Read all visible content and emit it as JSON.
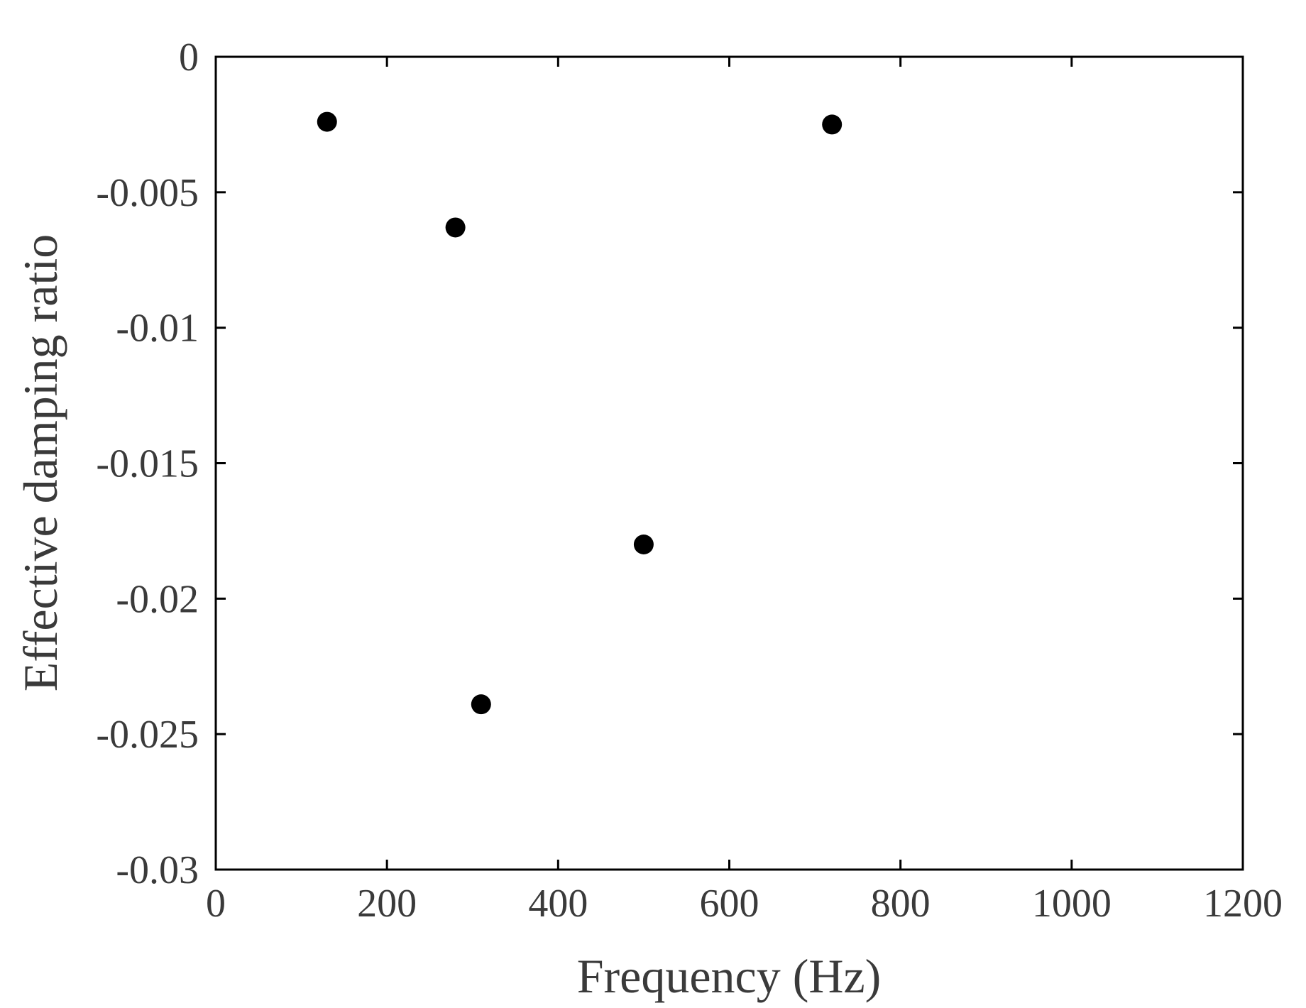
{
  "chart_data": {
    "type": "scatter",
    "title": "",
    "xlabel": "Frequency (Hz)",
    "ylabel": "Effective damping ratio",
    "xlim": [
      0,
      1200
    ],
    "ylim": [
      -0.03,
      0
    ],
    "xticks": [
      0,
      200,
      400,
      600,
      800,
      1000,
      1200
    ],
    "xtick_labels": [
      "0",
      "200",
      "400",
      "600",
      "800",
      "1000",
      "1200"
    ],
    "yticks": [
      0,
      -0.005,
      -0.01,
      -0.015,
      -0.02,
      -0.025,
      -0.03
    ],
    "ytick_labels": [
      "0",
      "-0.005",
      "-0.01",
      "-0.015",
      "-0.02",
      "-0.025",
      "-0.03"
    ],
    "grid": false,
    "marker_color": "#000000",
    "series": [
      {
        "x": [
          130,
          280,
          310,
          500,
          720
        ],
        "y": [
          -0.0024,
          -0.0063,
          -0.0239,
          -0.018,
          -0.0025
        ]
      }
    ]
  }
}
